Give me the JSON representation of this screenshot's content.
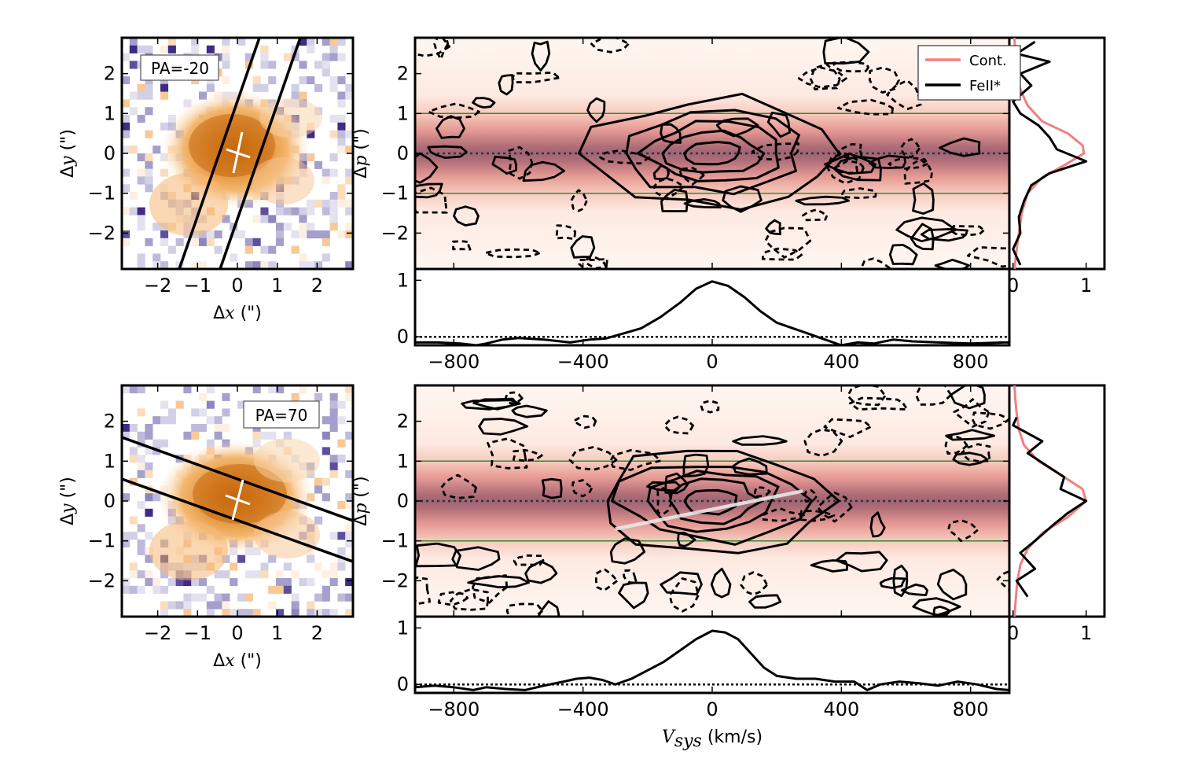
{
  "figure": {
    "x_label_vel": "V_sys (km/s)",
    "x_label_vel_main": "V",
    "x_label_vel_sub": "sys",
    "x_label_vel_unit": " (km/s)"
  },
  "chart_data": [
    {
      "type": "heatmap",
      "panel": "image-top",
      "pa_label": "PA=-20",
      "position_angle_deg": -20,
      "xlabel": "Δx (\")",
      "ylabel": "Δy (\")",
      "xlim": [
        -2.9,
        2.9
      ],
      "ylim": [
        -2.9,
        2.9
      ],
      "xticks": [
        -2,
        -1,
        0,
        1,
        2
      ],
      "yticks": [
        -2,
        -1,
        0,
        1,
        2
      ],
      "xtick_labels": [
        "−2",
        "−1",
        "0",
        "1",
        "2"
      ],
      "ytick_labels": [
        "−2",
        "−1",
        "0",
        "1",
        "2"
      ],
      "slit_width_arcsec": 1.0
    },
    {
      "type": "heatmap",
      "panel": "pv-top",
      "xlabel": "V_sys (km/s)",
      "ylabel": "Δp (\")",
      "xlim": [
        -920,
        920
      ],
      "ylim": [
        -2.9,
        2.9
      ],
      "xticks": [
        -800,
        -400,
        0,
        400,
        800
      ],
      "yticks": [
        -2,
        -1,
        0,
        1,
        2
      ],
      "xtick_labels": [
        "−800",
        "−400",
        "0",
        "400",
        "800"
      ],
      "ytick_labels": [
        "−2",
        "−1",
        "0",
        "1",
        "2"
      ],
      "reference_lines_p": [
        1,
        -1
      ],
      "zero_line_p": 0,
      "legend": [
        "Cont.",
        "FeII*"
      ],
      "legend_position": "top-right"
    },
    {
      "type": "line",
      "panel": "profile-side-top",
      "xlim": [
        -0.05,
        1.25
      ],
      "xticks": [
        0,
        1
      ],
      "xtick_labels": [
        "0",
        "1"
      ],
      "series": [
        {
          "name": "Cont.",
          "color": "#f08080",
          "p": [
            -2.9,
            -2.4,
            -2.0,
            -1.5,
            -1.0,
            -0.6,
            -0.3,
            0.0,
            0.2,
            0.5,
            0.8,
            1.2,
            1.6,
            2.0,
            2.5,
            2.9
          ],
          "values": [
            0.02,
            0.05,
            0.08,
            0.12,
            0.2,
            0.4,
            0.7,
            0.97,
            0.95,
            0.75,
            0.4,
            0.2,
            0.1,
            0.06,
            0.03,
            0.02
          ]
        },
        {
          "name": "FeII*",
          "color": "#000000",
          "p": [
            -2.8,
            -2.4,
            -2.0,
            -1.6,
            -1.2,
            -0.8,
            -0.5,
            -0.2,
            0.1,
            0.4,
            0.7,
            1.0,
            1.3,
            1.7,
            2.0,
            2.3,
            2.5,
            2.8
          ],
          "values": [
            0.1,
            0.0,
            0.1,
            0.08,
            0.15,
            0.25,
            0.5,
            1.0,
            0.6,
            0.5,
            0.35,
            0.1,
            0.0,
            0.25,
            0.1,
            0.5,
            0.05,
            0.3
          ]
        }
      ]
    },
    {
      "type": "line",
      "panel": "spectrum-top",
      "xlim": [
        -920,
        920
      ],
      "ylim": [
        -0.15,
        1.2
      ],
      "yticks": [
        0,
        1
      ],
      "ytick_labels": [
        "0",
        "1"
      ],
      "series": [
        {
          "name": "FeII*",
          "x": [
            -920,
            -850,
            -780,
            -730,
            -700,
            -650,
            -600,
            -520,
            -440,
            -380,
            -330,
            -280,
            -220,
            -160,
            -100,
            -50,
            0,
            50,
            100,
            150,
            200,
            250,
            300,
            350,
            400,
            450,
            500,
            560,
            620,
            700,
            800,
            900,
            920
          ],
          "values": [
            -0.1,
            -0.1,
            -0.12,
            -0.15,
            -0.12,
            -0.05,
            -0.02,
            -0.05,
            -0.1,
            -0.05,
            -0.03,
            0.05,
            0.15,
            0.35,
            0.6,
            0.85,
            0.98,
            0.9,
            0.7,
            0.45,
            0.25,
            0.15,
            0.05,
            -0.05,
            -0.15,
            -0.1,
            -0.12,
            -0.05,
            -0.08,
            -0.1,
            -0.12,
            -0.1,
            -0.1
          ]
        }
      ],
      "zero_line": 0
    },
    {
      "type": "heatmap",
      "panel": "image-bottom",
      "pa_label": "PA=70",
      "position_angle_deg": 70,
      "xlabel": "Δx (\")",
      "ylabel": "Δy (\")",
      "xlim": [
        -2.9,
        2.9
      ],
      "ylim": [
        -2.9,
        2.9
      ],
      "xticks": [
        -2,
        -1,
        0,
        1,
        2
      ],
      "yticks": [
        -2,
        -1,
        0,
        1,
        2
      ],
      "xtick_labels": [
        "−2",
        "−1",
        "0",
        "1",
        "2"
      ],
      "ytick_labels": [
        "−2",
        "−1",
        "0",
        "1",
        "2"
      ],
      "slit_width_arcsec": 1.0
    },
    {
      "type": "heatmap",
      "panel": "pv-bottom",
      "xlabel": "V_sys (km/s)",
      "ylabel": "Δp (\")",
      "xlim": [
        -920,
        920
      ],
      "ylim": [
        -2.9,
        2.9
      ],
      "xticks": [
        -800,
        -400,
        0,
        400,
        800
      ],
      "yticks": [
        -2,
        -1,
        0,
        1,
        2
      ],
      "xtick_labels": [
        "−800",
        "−400",
        "0",
        "400",
        "800"
      ],
      "ytick_labels": [
        "−2",
        "−1",
        "0",
        "1",
        "2"
      ],
      "reference_lines_p": [
        1,
        -1
      ],
      "zero_line_p": 0,
      "velocity_gradient_line": {
        "x": [
          -300,
          280
        ],
        "p": [
          -0.7,
          0.25
        ]
      }
    },
    {
      "type": "line",
      "panel": "profile-side-bottom",
      "xlim": [
        -0.05,
        1.25
      ],
      "xticks": [
        0,
        1
      ],
      "xtick_labels": [
        "0",
        "1"
      ],
      "series": [
        {
          "name": "Cont.",
          "color": "#f08080",
          "p": [
            -2.9,
            -2.4,
            -2.0,
            -1.6,
            -1.2,
            -0.8,
            -0.4,
            0.0,
            0.3,
            0.6,
            1.0,
            1.4,
            1.8,
            2.2,
            2.6,
            2.9
          ],
          "values": [
            0.02,
            0.04,
            0.06,
            0.1,
            0.2,
            0.4,
            0.75,
            1.0,
            0.95,
            0.7,
            0.35,
            0.15,
            0.08,
            0.05,
            0.03,
            0.02
          ]
        },
        {
          "name": "FeII*",
          "color": "#000000",
          "p": [
            -2.4,
            -2.0,
            -1.7,
            -1.3,
            -1.0,
            -0.6,
            -0.3,
            0.0,
            0.3,
            0.6,
            0.9,
            1.2,
            1.5,
            1.9,
            2.1
          ],
          "values": [
            0.2,
            0.05,
            0.3,
            0.1,
            0.3,
            0.55,
            0.75,
            1.0,
            0.65,
            0.7,
            0.45,
            0.2,
            0.4,
            0.0,
            0.05
          ]
        }
      ]
    },
    {
      "type": "line",
      "panel": "spectrum-bottom",
      "xlim": [
        -920,
        920
      ],
      "ylim": [
        -0.15,
        1.2
      ],
      "yticks": [
        0,
        1
      ],
      "ytick_labels": [
        "0",
        "1"
      ],
      "series": [
        {
          "name": "FeII*",
          "x": [
            -920,
            -860,
            -800,
            -740,
            -700,
            -640,
            -580,
            -520,
            -460,
            -420,
            -380,
            -340,
            -300,
            -250,
            -200,
            -150,
            -100,
            -50,
            0,
            40,
            80,
            120,
            160,
            200,
            260,
            320,
            380,
            440,
            480,
            520,
            580,
            640,
            700,
            760,
            820,
            880,
            920
          ],
          "values": [
            -0.05,
            -0.02,
            -0.05,
            -0.1,
            -0.05,
            -0.08,
            -0.1,
            -0.02,
            0.05,
            0.1,
            0.12,
            0.08,
            0.0,
            0.1,
            0.25,
            0.4,
            0.6,
            0.8,
            0.95,
            0.92,
            0.8,
            0.55,
            0.3,
            0.15,
            0.1,
            0.1,
            0.05,
            0.05,
            -0.1,
            0.0,
            0.05,
            0.02,
            -0.02,
            0.05,
            0.0,
            -0.08,
            -0.1
          ]
        }
      ],
      "zero_line": 0
    }
  ]
}
